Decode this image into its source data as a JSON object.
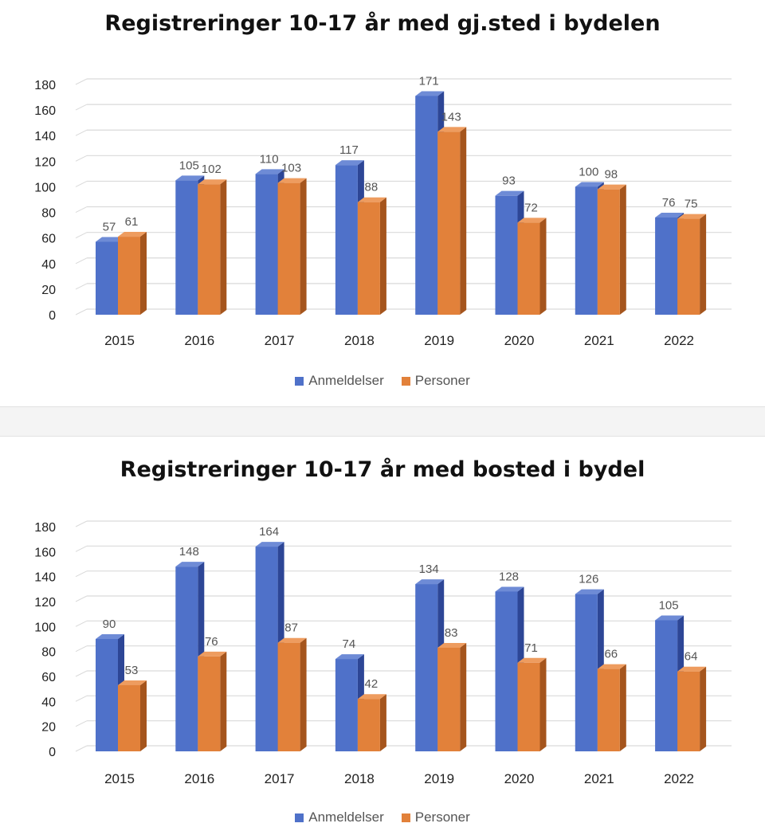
{
  "colors": {
    "anmeldelser": "#4F71C9",
    "anmeldelser_side": "#2D4696",
    "anmeldelser_top": "#6E8BD6",
    "personer": "#E2813A",
    "personer_side": "#A5551D",
    "personer_top": "#EE9C5F",
    "grid": "#d9d9d9"
  },
  "chart_data": [
    {
      "type": "bar",
      "title": "Registreringer 10-17 år med gj.sted i bydelen",
      "categories": [
        "2015",
        "2016",
        "2017",
        "2018",
        "2019",
        "2020",
        "2021",
        "2022"
      ],
      "series": [
        {
          "name": "Anmeldelser",
          "values": [
            57,
            105,
            110,
            117,
            171,
            93,
            100,
            76
          ]
        },
        {
          "name": "Personer",
          "values": [
            61,
            102,
            103,
            88,
            143,
            72,
            98,
            75
          ]
        }
      ],
      "yticks": [
        "0",
        "20",
        "40",
        "60",
        "80",
        "100",
        "120",
        "140",
        "160",
        "180"
      ],
      "ylim": [
        0,
        180
      ],
      "grid": true,
      "legend": "bottom"
    },
    {
      "type": "bar",
      "title": "Registreringer 10-17 år med bosted i bydel",
      "categories": [
        "2015",
        "2016",
        "2017",
        "2018",
        "2019",
        "2020",
        "2021",
        "2022"
      ],
      "series": [
        {
          "name": "Anmeldelser",
          "values": [
            90,
            148,
            164,
            74,
            134,
            128,
            126,
            105
          ]
        },
        {
          "name": "Personer",
          "values": [
            53,
            76,
            87,
            42,
            83,
            71,
            66,
            64
          ]
        }
      ],
      "yticks": [
        "0",
        "20",
        "40",
        "60",
        "80",
        "100",
        "120",
        "140",
        "160",
        "180"
      ],
      "ylim": [
        0,
        180
      ],
      "grid": true,
      "legend": "bottom"
    }
  ]
}
